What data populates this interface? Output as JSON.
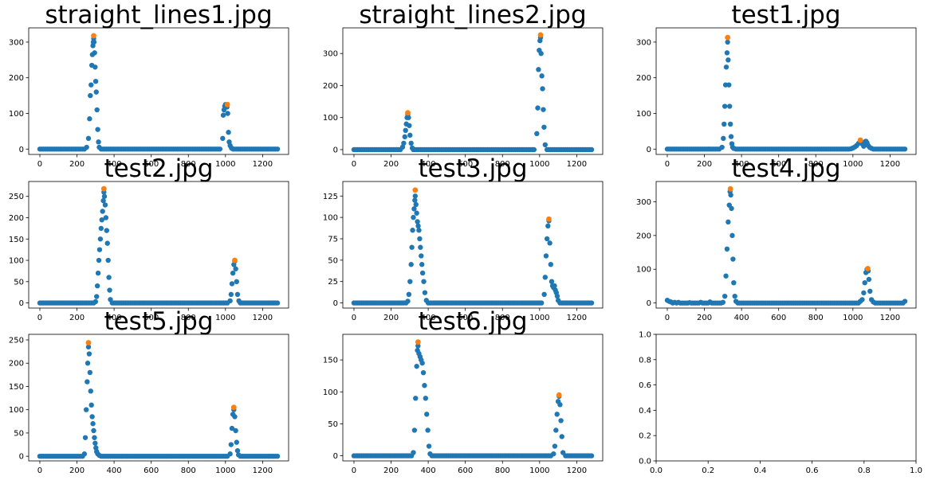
{
  "figure": {
    "background": "#ffffff",
    "point_color": "#1f77b4",
    "peak_color": "#ff7f0e"
  },
  "chart_data": [
    {
      "type": "scatter",
      "title": "straight_lines1.jpg",
      "xlim": [
        -60,
        1340
      ],
      "ylim": [
        -15,
        340
      ],
      "xticks": [
        0,
        200,
        400,
        600,
        800,
        1000,
        1200
      ],
      "yticks": [
        0,
        100,
        200,
        300
      ],
      "xtick_labels": [
        "0",
        "200",
        "400",
        "600",
        "800",
        "1000",
        "1200"
      ],
      "ytick_labels": [
        "0",
        "100",
        "200",
        "300"
      ],
      "peaks": [
        [
          290,
          318
        ],
        [
          1010,
          125
        ]
      ],
      "x": [
        252,
        262,
        268,
        272,
        276,
        280,
        283,
        286,
        288,
        290,
        292,
        295,
        298,
        301,
        304,
        308,
        312,
        316,
        320,
        985,
        988,
        992,
        996,
        1000,
        1004,
        1008,
        1012,
        1016,
        1020,
        1025,
        1032
      ],
      "y": [
        5,
        30,
        85,
        150,
        180,
        235,
        265,
        290,
        300,
        310,
        300,
        270,
        230,
        190,
        160,
        110,
        55,
        20,
        5,
        30,
        95,
        110,
        120,
        125,
        122,
        118,
        100,
        47,
        20,
        10,
        3
      ]
    },
    {
      "type": "scatter",
      "title": "straight_lines2.jpg",
      "xlim": [
        -60,
        1340
      ],
      "ylim": [
        -15,
        380
      ],
      "xticks": [
        0,
        200,
        400,
        600,
        800,
        1000,
        1200
      ],
      "yticks": [
        0,
        100,
        200,
        300
      ],
      "xtick_labels": [
        "0",
        "200",
        "400",
        "600",
        "800",
        "1000",
        "1200"
      ],
      "ytick_labels": [
        "0",
        "100",
        "200",
        "300"
      ],
      "peaks": [
        [
          290,
          115
        ],
        [
          1005,
          358
        ]
      ],
      "x": [
        262,
        268,
        274,
        278,
        282,
        286,
        290,
        294,
        298,
        302,
        308,
        314,
        985,
        990,
        994,
        998,
        1002,
        1005,
        1008,
        1012,
        1016,
        1020,
        1024,
        1030
      ],
      "y": [
        8,
        20,
        40,
        60,
        80,
        100,
        110,
        100,
        75,
        45,
        20,
        5,
        50,
        130,
        250,
        310,
        340,
        350,
        300,
        230,
        190,
        125,
        70,
        15
      ]
    },
    {
      "type": "scatter",
      "title": "test1.jpg",
      "xlim": [
        -60,
        1340
      ],
      "ylim": [
        -15,
        340
      ],
      "xticks": [
        0,
        200,
        400,
        600,
        800,
        1000,
        1200
      ],
      "yticks": [
        0,
        100,
        200,
        300
      ],
      "xtick_labels": [
        "0",
        "200",
        "400",
        "600",
        "800",
        "1000",
        "1200"
      ],
      "ytick_labels": [
        "0",
        "100",
        "200",
        "300"
      ],
      "peaks": [
        [
          325,
          313
        ],
        [
          1040,
          25
        ]
      ],
      "x": [
        295,
        302,
        306,
        310,
        314,
        318,
        322,
        325,
        328,
        332,
        336,
        340,
        344,
        348,
        352,
        358,
        990,
        1000,
        1010,
        1020,
        1030,
        1040,
        1050,
        1058,
        1064,
        1070,
        1076,
        1082,
        1090,
        1100
      ],
      "y": [
        5,
        30,
        70,
        120,
        180,
        230,
        270,
        300,
        250,
        180,
        120,
        70,
        35,
        15,
        5,
        2,
        1,
        3,
        6,
        10,
        16,
        22,
        15,
        8,
        20,
        22,
        18,
        10,
        5,
        2
      ]
    },
    {
      "type": "scatter",
      "title": "test2.jpg",
      "xlim": [
        -60,
        1340
      ],
      "ylim": [
        -12,
        285
      ],
      "xticks": [
        0,
        200,
        400,
        600,
        800,
        1000,
        1200
      ],
      "yticks": [
        0,
        50,
        100,
        150,
        200,
        250
      ],
      "xtick_labels": [
        "0",
        "200",
        "400",
        "600",
        "800",
        "1000",
        "1200"
      ],
      "ytick_labels": [
        "0",
        "50",
        "100",
        "150",
        "200",
        "250"
      ],
      "peaks": [
        [
          345,
          268
        ],
        [
          1050,
          100
        ]
      ],
      "x": [
        300,
        306,
        310,
        314,
        318,
        322,
        326,
        330,
        334,
        338,
        342,
        345,
        348,
        352,
        356,
        360,
        364,
        368,
        372,
        376,
        380,
        1025,
        1030,
        1035,
        1040,
        1045,
        1050,
        1055,
        1060,
        1065,
        1072
      ],
      "y": [
        3,
        15,
        40,
        70,
        100,
        125,
        150,
        175,
        195,
        215,
        240,
        260,
        250,
        230,
        200,
        170,
        140,
        100,
        60,
        30,
        8,
        5,
        20,
        45,
        70,
        90,
        98,
        80,
        50,
        20,
        5
      ]
    },
    {
      "type": "scatter",
      "title": "test3.jpg",
      "xlim": [
        -60,
        1340
      ],
      "ylim": [
        -6,
        142
      ],
      "xticks": [
        0,
        200,
        400,
        600,
        800,
        1000,
        1200
      ],
      "yticks": [
        0,
        25,
        50,
        75,
        100,
        125
      ],
      "xtick_labels": [
        "0",
        "200",
        "400",
        "600",
        "800",
        "1000",
        "1200"
      ],
      "ytick_labels": [
        "0",
        "25",
        "50",
        "75",
        "100",
        "125"
      ],
      "peaks": [
        [
          330,
          132
        ],
        [
          1050,
          98
        ]
      ],
      "x": [
        290,
        296,
        302,
        308,
        312,
        316,
        320,
        324,
        328,
        330,
        334,
        338,
        342,
        346,
        350,
        354,
        358,
        362,
        366,
        370,
        376,
        382,
        390,
        1025,
        1030,
        1035,
        1040,
        1045,
        1050,
        1055,
        1060,
        1065,
        1070,
        1075,
        1080,
        1085,
        1090,
        1095,
        1100
      ],
      "y": [
        2,
        10,
        25,
        45,
        65,
        85,
        100,
        110,
        120,
        125,
        115,
        105,
        95,
        90,
        85,
        75,
        65,
        55,
        45,
        35,
        25,
        12,
        3,
        10,
        30,
        55,
        75,
        90,
        96,
        70,
        45,
        25,
        20,
        18,
        20,
        15,
        12,
        8,
        3
      ]
    },
    {
      "type": "scatter",
      "title": "test4.jpg",
      "xlim": [
        -60,
        1340
      ],
      "ylim": [
        -15,
        360
      ],
      "xticks": [
        0,
        200,
        400,
        600,
        800,
        1000,
        1200
      ],
      "yticks": [
        0,
        100,
        200,
        300
      ],
      "xtick_labels": [
        "0",
        "200",
        "400",
        "600",
        "800",
        "1000",
        "1200"
      ],
      "ytick_labels": [
        "0",
        "100",
        "200",
        "300"
      ],
      "peaks": [
        [
          340,
          338
        ],
        [
          1080,
          102
        ]
      ],
      "x": [
        0,
        10,
        20,
        40,
        60,
        120,
        180,
        230,
        300,
        310,
        316,
        322,
        328,
        334,
        338,
        342,
        346,
        350,
        354,
        358,
        364,
        370,
        1040,
        1050,
        1058,
        1064,
        1070,
        1076,
        1082,
        1086,
        1092,
        1100,
        1110,
        1280
      ],
      "y": [
        8,
        5,
        3,
        2,
        2,
        1,
        2,
        3,
        2,
        20,
        80,
        160,
        240,
        290,
        330,
        320,
        280,
        200,
        130,
        60,
        20,
        5,
        5,
        10,
        30,
        60,
        90,
        100,
        95,
        70,
        35,
        10,
        3,
        5
      ]
    },
    {
      "type": "scatter",
      "title": "test5.jpg",
      "xlim": [
        -60,
        1340
      ],
      "ylim": [
        -10,
        262
      ],
      "xticks": [
        0,
        200,
        400,
        600,
        800,
        1000,
        1200
      ],
      "yticks": [
        0,
        50,
        100,
        150,
        200,
        250
      ],
      "xtick_labels": [
        "0",
        "200",
        "400",
        "600",
        "800",
        "1000",
        "1200"
      ],
      "ytick_labels": [
        "0",
        "50",
        "100",
        "150",
        "200",
        "250"
      ],
      "peaks": [
        [
          262,
          244
        ],
        [
          1045,
          105
        ]
      ],
      "x": [
        240,
        245,
        250,
        255,
        258,
        262,
        266,
        270,
        274,
        278,
        282,
        286,
        290,
        294,
        298,
        302,
        306,
        312,
        320,
        1025,
        1030,
        1035,
        1040,
        1045,
        1050,
        1055,
        1060,
        1065,
        1070
      ],
      "y": [
        5,
        40,
        100,
        160,
        200,
        235,
        220,
        180,
        140,
        110,
        85,
        70,
        55,
        40,
        28,
        18,
        10,
        5,
        2,
        5,
        25,
        60,
        90,
        100,
        85,
        55,
        30,
        12,
        3
      ]
    },
    {
      "type": "scatter",
      "title": "test6.jpg",
      "xlim": [
        -60,
        1340
      ],
      "ylim": [
        -8,
        190
      ],
      "xticks": [
        0,
        200,
        400,
        600,
        800,
        1000,
        1200
      ],
      "yticks": [
        0,
        50,
        100,
        150
      ],
      "xtick_labels": [
        "0",
        "200",
        "400",
        "600",
        "800",
        "1000",
        "1200"
      ],
      "ytick_labels": [
        "0",
        "50",
        "100",
        "150"
      ],
      "peaks": [
        [
          345,
          178
        ],
        [
          1105,
          95
        ]
      ],
      "x": [
        320,
        326,
        332,
        338,
        342,
        345,
        350,
        356,
        362,
        368,
        374,
        380,
        386,
        392,
        398,
        404,
        410,
        1075,
        1082,
        1088,
        1094,
        1100,
        1105,
        1110,
        1115,
        1120,
        1126
      ],
      "y": [
        5,
        40,
        90,
        140,
        165,
        172,
        160,
        155,
        150,
        145,
        130,
        110,
        90,
        65,
        40,
        15,
        3,
        3,
        15,
        40,
        65,
        85,
        93,
        80,
        55,
        30,
        5
      ]
    },
    {
      "type": "scatter",
      "title": "",
      "xlim": [
        0,
        1
      ],
      "ylim": [
        0,
        1
      ],
      "xticks": [
        0,
        0.2,
        0.4,
        0.6,
        0.8,
        1.0
      ],
      "yticks": [
        0,
        0.2,
        0.4,
        0.6,
        0.8,
        1.0
      ],
      "xtick_labels": [
        "0.0",
        "0.2",
        "0.4",
        "0.6",
        "0.8",
        "1.0"
      ],
      "ytick_labels": [
        "0.0",
        "0.2",
        "0.4",
        "0.6",
        "0.8",
        "1.0"
      ],
      "peaks": [],
      "x": [],
      "y": []
    }
  ]
}
